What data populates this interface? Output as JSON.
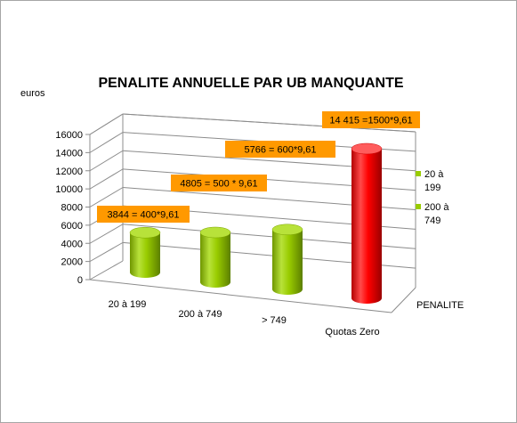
{
  "chart_data": {
    "type": "bar",
    "title": "PENALITE ANNUELLE PAR UB MANQUANTE",
    "ylabel": "euros",
    "depth_label": "PENALITE",
    "categories": [
      "20 à 199",
      "200 à 749",
      "> 749",
      "Quotas Zero"
    ],
    "values": [
      3844,
      4805,
      5766,
      14415
    ],
    "bar_colors": [
      "#99cc00",
      "#99cc00",
      "#99cc00",
      "#ff0000"
    ],
    "ylim": [
      0,
      16000
    ],
    "yticks": [
      "0",
      "2000",
      "4000",
      "6000",
      "8000",
      "10000",
      "12000",
      "14000",
      "16000"
    ],
    "annotations": [
      "3844 = 400*9,61",
      "4805 = 500 * 9,61",
      "5766 = 600*9,61",
      "14 415 =1500*9,61"
    ],
    "annotation_color": "#ff9900",
    "legend": [
      {
        "label_line1": "20 à",
        "label_line2": "199",
        "color": "#99cc00"
      },
      {
        "label_line1": "200 à",
        "label_line2": "749",
        "color": "#99cc00"
      }
    ],
    "legend_position": "right",
    "grid": true
  }
}
